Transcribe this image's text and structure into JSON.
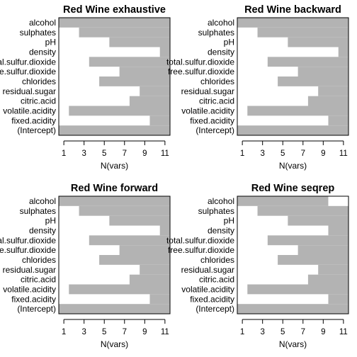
{
  "colors": {
    "included": "#b3b3b3",
    "excluded": "#ffffff",
    "axis": "#000000"
  },
  "chart_data": [
    {
      "type": "heatmap",
      "title": "Red Wine exhaustive",
      "xlabel": "N(vars)",
      "ylabel": "",
      "xticks": [
        "1",
        "3",
        "5",
        "7",
        "9",
        "11"
      ],
      "xlim": [
        0.5,
        11.5
      ],
      "variables": [
        "alcohol",
        "sulphates",
        "pH",
        "density",
        "total.sulfur.dioxide",
        "free.sulfur.dioxide",
        "chlorides",
        "residual.sugar",
        "citric.acid",
        "volatile.acidity",
        "fixed.acidity",
        "(Intercept)"
      ],
      "first_included_at": [
        1,
        3,
        6,
        11,
        4,
        7,
        5,
        9,
        8,
        2,
        10,
        1
      ],
      "excluded_after": [
        null,
        null,
        null,
        null,
        null,
        null,
        null,
        null,
        null,
        null,
        null,
        null
      ]
    },
    {
      "type": "heatmap",
      "title": "Red Wine backward",
      "xlabel": "N(vars)",
      "ylabel": "",
      "xticks": [
        "1",
        "3",
        "5",
        "7",
        "9",
        "11"
      ],
      "xlim": [
        0.5,
        11.5
      ],
      "variables": [
        "alcohol",
        "sulphates",
        "pH",
        "density",
        "total.sulfur.dioxide",
        "free.sulfur.dioxide",
        "chlorides",
        "residual.sugar",
        "citric.acid",
        "volatile.acidity",
        "fixed.acidity",
        "(Intercept)"
      ],
      "first_included_at": [
        1,
        3,
        6,
        11,
        4,
        7,
        5,
        9,
        8,
        2,
        10,
        1
      ],
      "excluded_after": [
        null,
        null,
        null,
        null,
        null,
        null,
        null,
        null,
        null,
        null,
        null,
        null
      ]
    },
    {
      "type": "heatmap",
      "title": "Red Wine forward",
      "xlabel": "N(vars)",
      "ylabel": "",
      "xticks": [
        "1",
        "3",
        "5",
        "7",
        "9",
        "11"
      ],
      "xlim": [
        0.5,
        11.5
      ],
      "variables": [
        "alcohol",
        "sulphates",
        "pH",
        "density",
        "total.sulfur.dioxide",
        "free.sulfur.dioxide",
        "chlorides",
        "residual.sugar",
        "citric.acid",
        "volatile.acidity",
        "fixed.acidity",
        "(Intercept)"
      ],
      "first_included_at": [
        1,
        3,
        6,
        11,
        4,
        7,
        5,
        9,
        8,
        2,
        10,
        1
      ],
      "excluded_after": [
        null,
        null,
        null,
        null,
        null,
        null,
        null,
        null,
        null,
        null,
        null,
        null
      ]
    },
    {
      "type": "heatmap",
      "title": "Red Wine seqrep",
      "xlabel": "N(vars)",
      "ylabel": "",
      "xticks": [
        "1",
        "3",
        "5",
        "7",
        "9",
        "11"
      ],
      "xlim": [
        0.5,
        11.5
      ],
      "variables": [
        "alcohol",
        "sulphates",
        "pH",
        "density",
        "total.sulfur.dioxide",
        "free.sulfur.dioxide",
        "chlorides",
        "residual.sugar",
        "citric.acid",
        "volatile.acidity",
        "fixed.acidity",
        "(Intercept)"
      ],
      "first_included_at": [
        1,
        3,
        6,
        10,
        4,
        7,
        5,
        9,
        8,
        2,
        10,
        1
      ],
      "excluded_after": [
        9,
        null,
        null,
        null,
        null,
        null,
        null,
        null,
        null,
        null,
        null,
        null
      ]
    }
  ]
}
